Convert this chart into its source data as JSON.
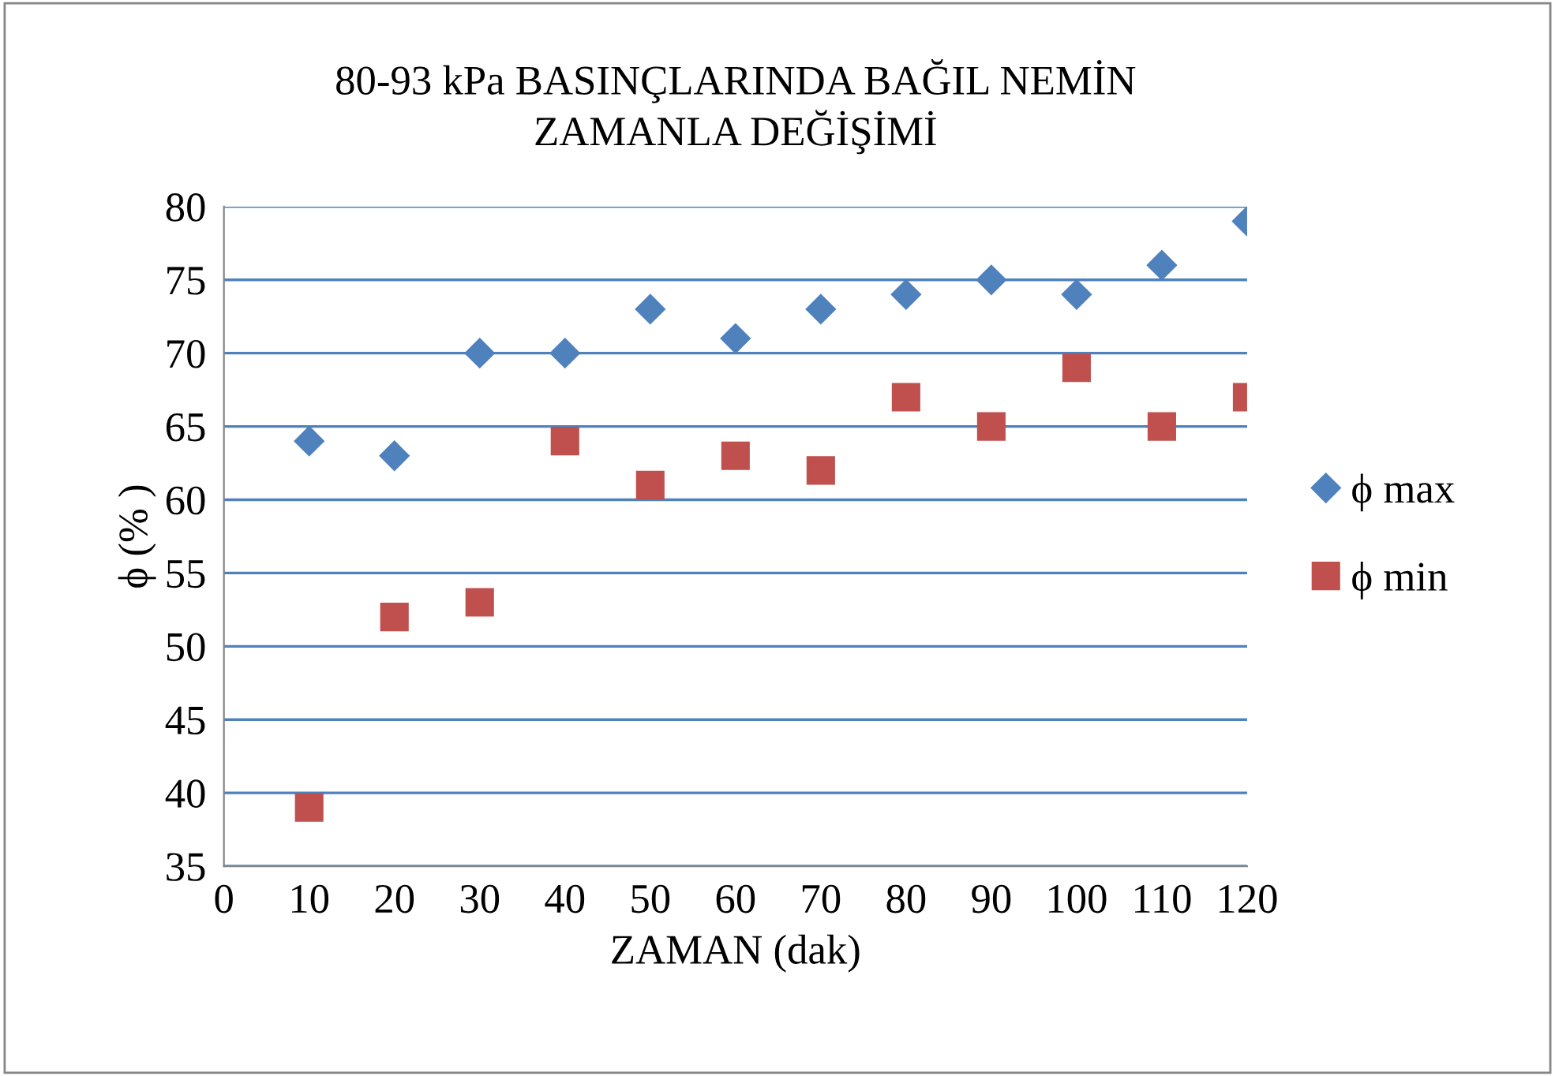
{
  "chart_data": {
    "type": "scatter",
    "title": "80-93 kPa BASINÇLARINDA BAĞIL NEMİN\nZAMANLA DEĞİŞİMİ",
    "xlabel": "ZAMAN (dak)",
    "ylabel": "ϕ (% )",
    "x": [
      10,
      20,
      30,
      40,
      50,
      60,
      70,
      80,
      90,
      100,
      110,
      120
    ],
    "series": [
      {
        "name": "ϕ max",
        "color": "#4f81bd",
        "marker": "diamond",
        "values": [
          64,
          63,
          70,
          70,
          73,
          71,
          73,
          74,
          75,
          74,
          76,
          79
        ]
      },
      {
        "name": "ϕ min",
        "color": "#c0504d",
        "marker": "square",
        "values": [
          39,
          52,
          53,
          64,
          61,
          63,
          62,
          67,
          65,
          69,
          65,
          67
        ]
      }
    ],
    "xlim": [
      0,
      120
    ],
    "xticks": [
      0,
      10,
      20,
      30,
      40,
      50,
      60,
      70,
      80,
      90,
      100,
      110,
      120
    ],
    "ylim": [
      35,
      80
    ],
    "yticks": [
      35,
      40,
      45,
      50,
      55,
      60,
      65,
      70,
      75,
      80
    ],
    "grid": "y",
    "legend": "right"
  }
}
